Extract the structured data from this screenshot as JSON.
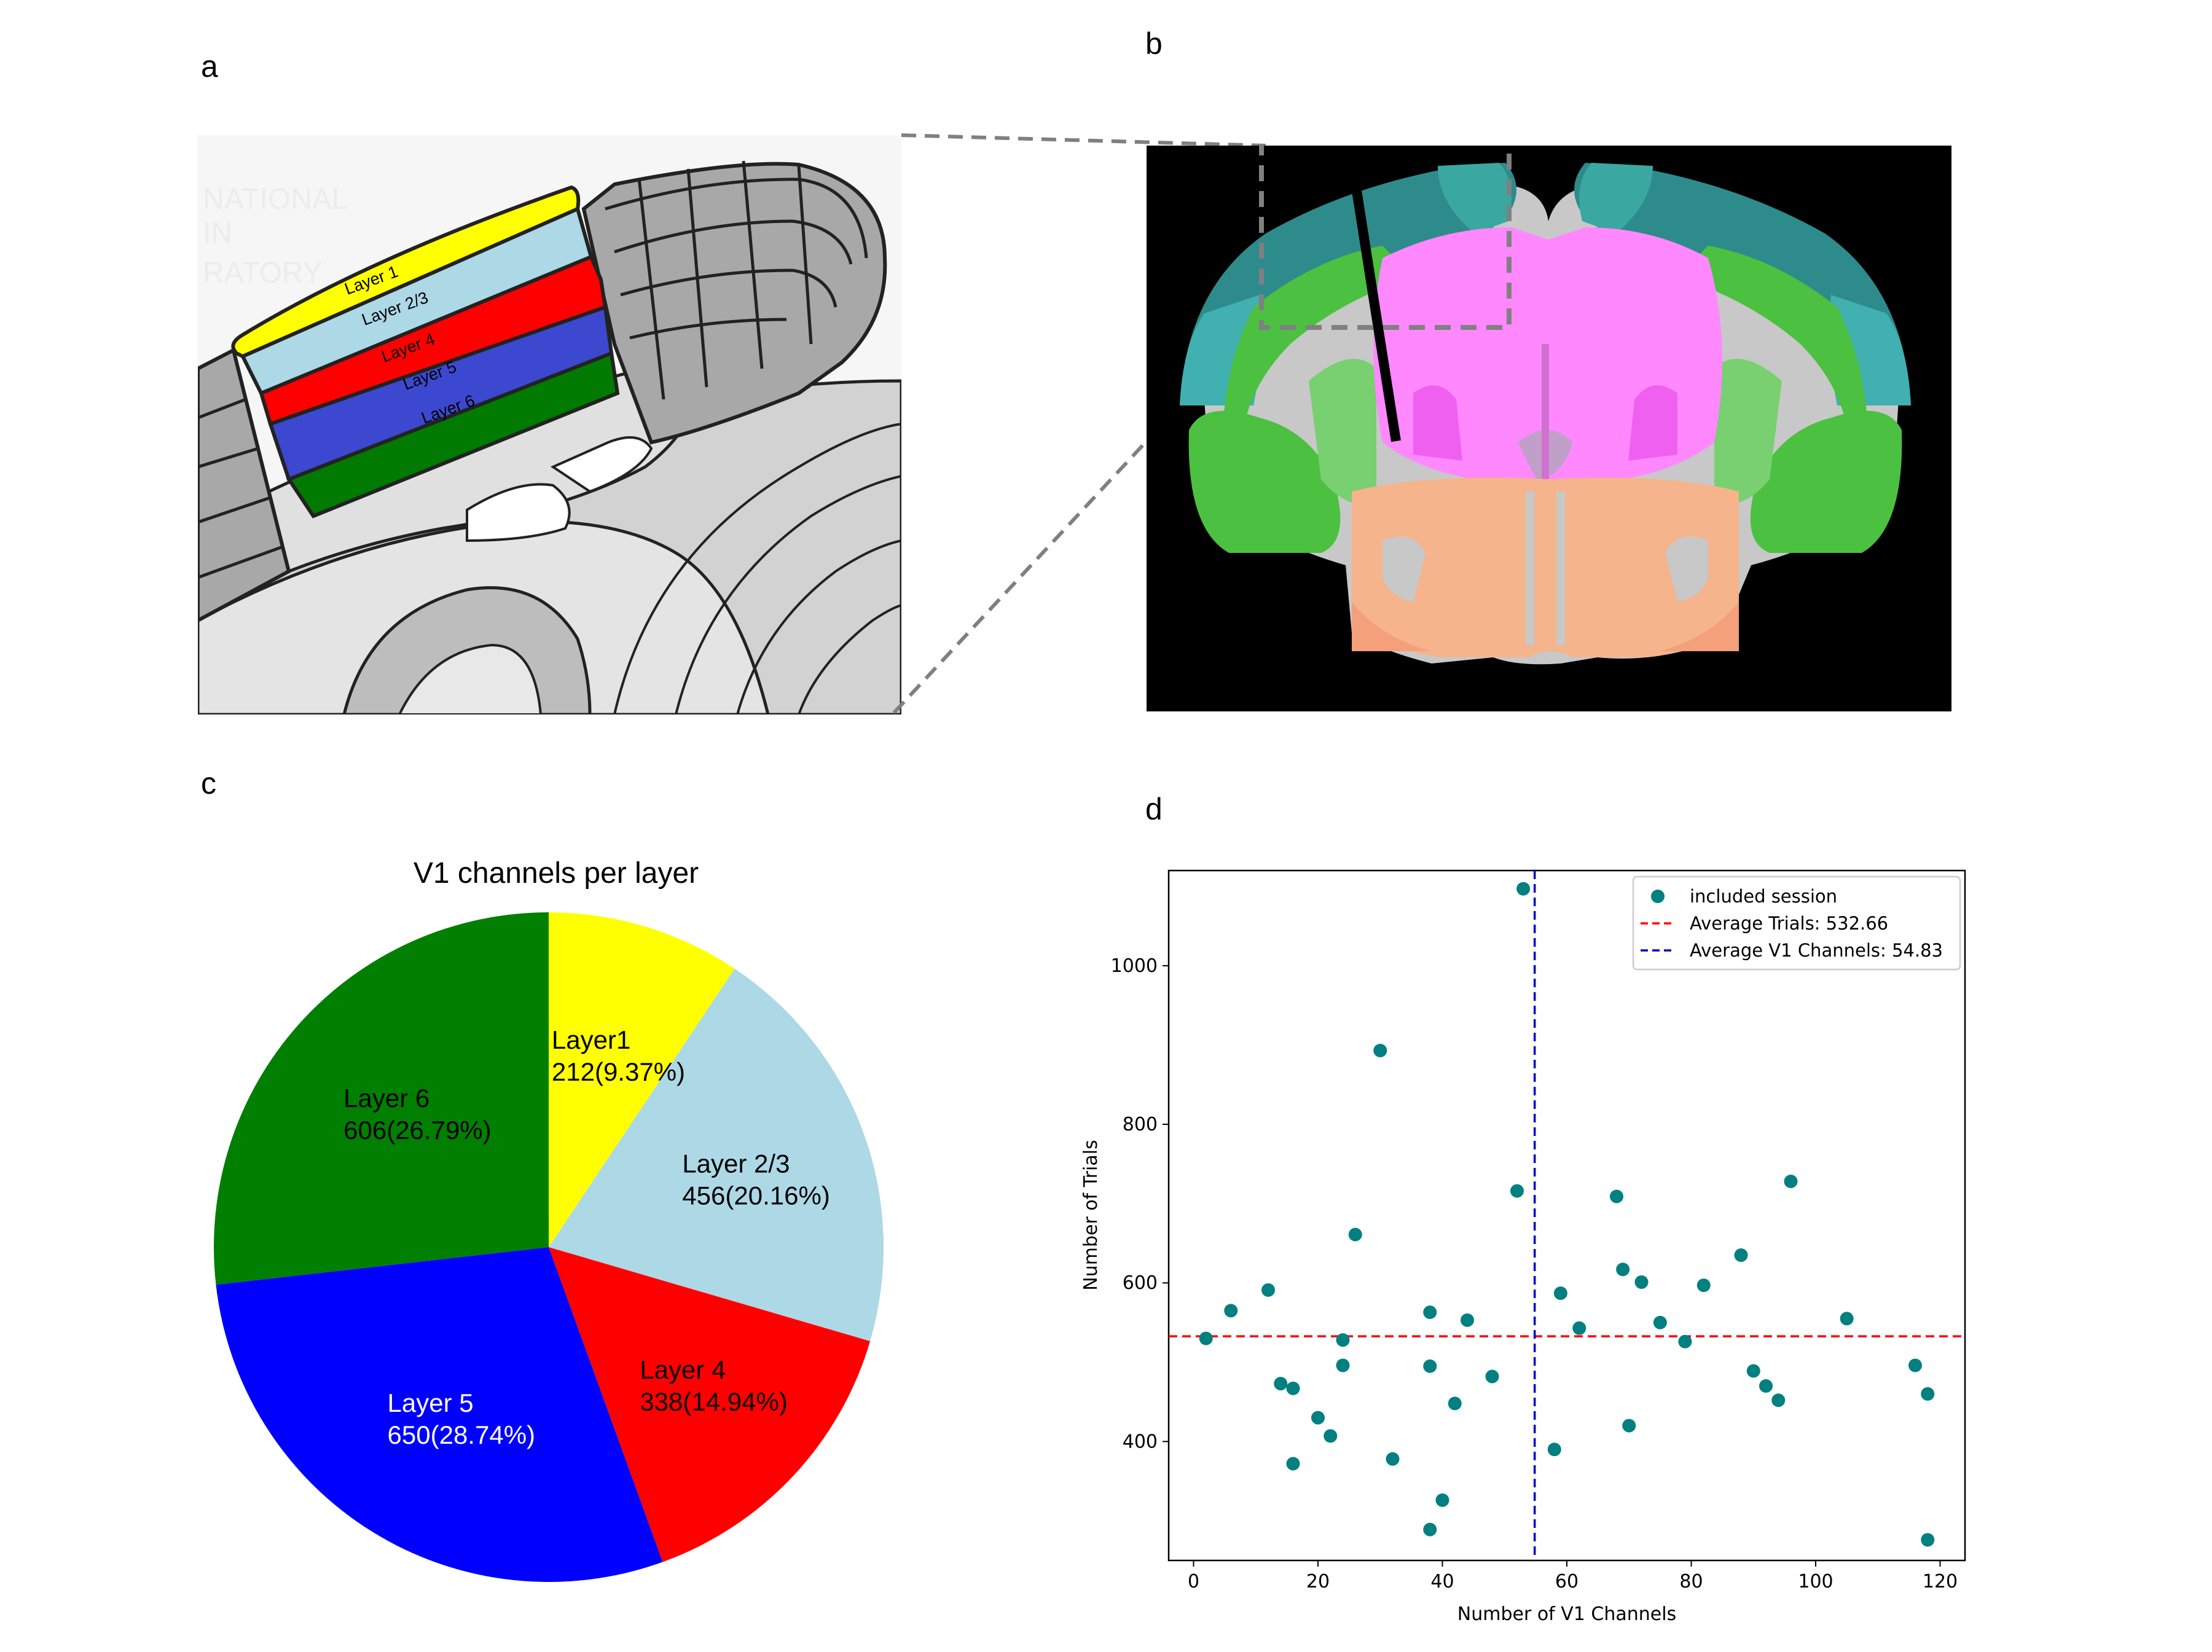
{
  "panels": {
    "a": "a",
    "b": "b",
    "c": "c",
    "d": "d"
  },
  "panel_a": {
    "layers": [
      "Layer 1",
      "Layer 2/3",
      "Layer 4",
      "Layer 5",
      "Layer 6"
    ],
    "layer_colors": [
      "#ffff00",
      "#add8e6",
      "#ff0000",
      "#3c48d0",
      "#007a00"
    ],
    "watermark": [
      "NATIONAL",
      "IN",
      "RATORY"
    ]
  },
  "panel_b": {
    "description_colors": {
      "background": "#000000",
      "cortex": "#2e8b8b",
      "hippocampus": "#4cc040",
      "thalamus": "#ff88ff",
      "midbrain": "#f5b48c"
    }
  },
  "chart_data": [
    {
      "type": "pie",
      "title": "V1 channels per layer",
      "slices": [
        {
          "label": "Layer1",
          "value": 212,
          "pct": "9.37%",
          "color": "#ffff00",
          "text": "212(9.37%)"
        },
        {
          "label": "Layer 2/3",
          "value": 456,
          "pct": "20.16%",
          "color": "#add8e6",
          "text": "456(20.16%)"
        },
        {
          "label": "Layer 4",
          "value": 338,
          "pct": "14.94%",
          "color": "#ff0000",
          "text": "338(14.94%)"
        },
        {
          "label": "Layer 5",
          "value": 650,
          "pct": "28.74%",
          "color": "#0000ff",
          "text": "650(28.74%)"
        },
        {
          "label": "Layer 6",
          "value": 606,
          "pct": "26.79%",
          "color": "#007f00",
          "text": "606(26.79%)"
        }
      ]
    },
    {
      "type": "scatter",
      "xlabel": "Number of V1 Channels",
      "ylabel": "Number of Trials",
      "xlim": [
        -4,
        124
      ],
      "ylim": [
        250,
        1120
      ],
      "xticks": [
        0,
        20,
        40,
        60,
        80,
        100,
        120
      ],
      "yticks": [
        400,
        600,
        800,
        1000
      ],
      "color": "#008080",
      "series": [
        {
          "name": "included session",
          "points": [
            [
              2,
              530
            ],
            [
              6,
              565
            ],
            [
              12,
              591
            ],
            [
              14,
              473
            ],
            [
              16,
              467
            ],
            [
              16,
              372
            ],
            [
              20,
              430
            ],
            [
              22,
              407
            ],
            [
              24,
              528
            ],
            [
              24,
              496
            ],
            [
              26,
              661
            ],
            [
              30,
              893
            ],
            [
              32,
              378
            ],
            [
              38,
              563
            ],
            [
              38,
              495
            ],
            [
              38,
              289
            ],
            [
              40,
              326
            ],
            [
              42,
              448
            ],
            [
              44,
              553
            ],
            [
              48,
              482
            ],
            [
              52,
              716
            ],
            [
              53,
              1097
            ],
            [
              58,
              390
            ],
            [
              59,
              587
            ],
            [
              62,
              543
            ],
            [
              68,
              709
            ],
            [
              69,
              617
            ],
            [
              70,
              420
            ],
            [
              72,
              601
            ],
            [
              75,
              550
            ],
            [
              79,
              526
            ],
            [
              82,
              597
            ],
            [
              88,
              635
            ],
            [
              90,
              489
            ],
            [
              92,
              470
            ],
            [
              94,
              452
            ],
            [
              96,
              728
            ],
            [
              105,
              555
            ],
            [
              116,
              496
            ],
            [
              118,
              460
            ],
            [
              118,
              276
            ]
          ]
        }
      ],
      "hlines": [
        {
          "name": "Average Trials: 532.66",
          "value": 532.66,
          "color": "#ff0000"
        }
      ],
      "vlines": [
        {
          "name": "Average V1 Channels: 54.83",
          "value": 54.83,
          "color": "#0000cc"
        }
      ],
      "legend": {
        "placement": "top-right",
        "entries": [
          "included session",
          "Average Trials: 532.66",
          "Average V1 Channels: 54.83"
        ]
      }
    }
  ]
}
